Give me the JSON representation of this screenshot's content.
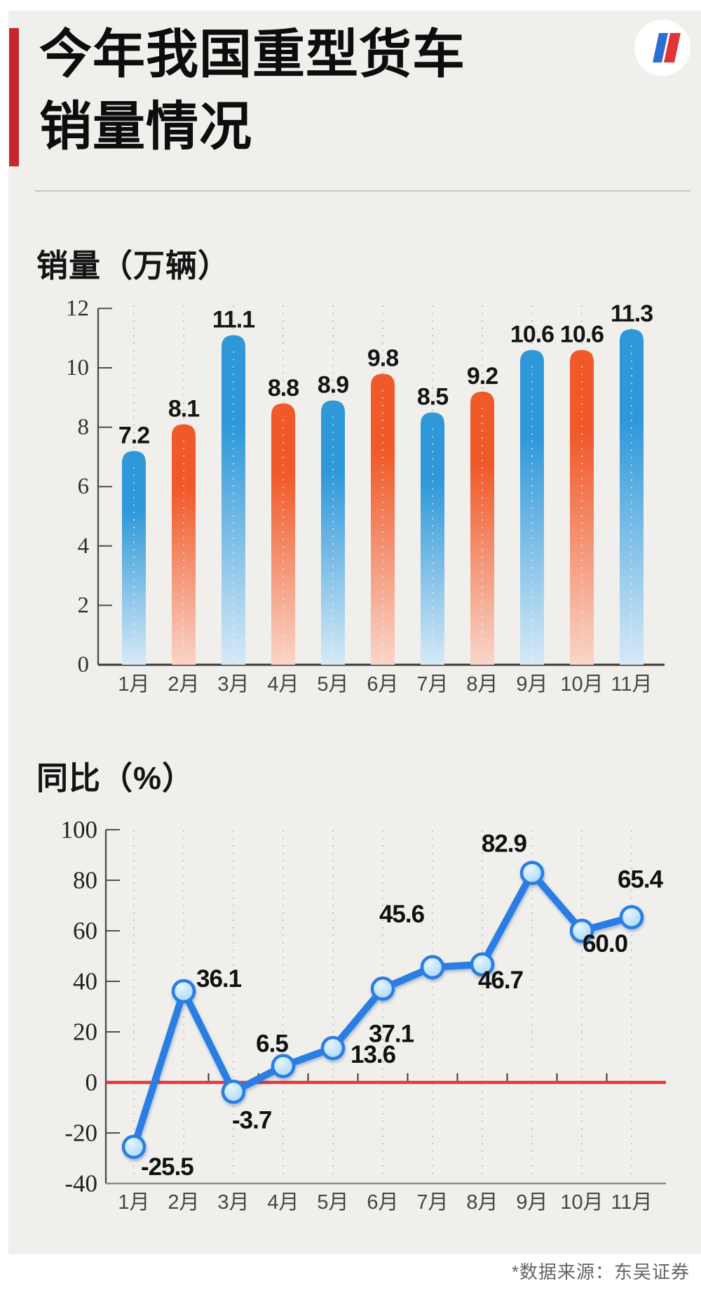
{
  "page": {
    "outer_bg": "#ffffff",
    "card_bg": "#f0efec"
  },
  "header": {
    "accent_color": "#c5272c",
    "title_line1": "今年我国重型货车",
    "title_line2": "销量情况",
    "logo_icon": "red-blue-n-logo",
    "logo_colors": {
      "circle": "#ffffff",
      "left_stroke": "#2b6fd4",
      "right_stroke": "#e03438"
    }
  },
  "sales_section": {
    "title": "销量",
    "unit": "（万辆）"
  },
  "yoy_section": {
    "title": "同比",
    "unit": "（%）"
  },
  "chart_data": [
    {
      "type": "bar",
      "title": "销量（万辆）",
      "categories": [
        "1月",
        "2月",
        "3月",
        "4月",
        "5月",
        "6月",
        "7月",
        "8月",
        "9月",
        "10月",
        "11月"
      ],
      "values": [
        7.2,
        8.1,
        11.1,
        8.8,
        8.9,
        9.8,
        8.5,
        9.2,
        10.6,
        10.6,
        11.3
      ],
      "labels": [
        "7.2",
        "8.1",
        "11.1",
        "8.8",
        "8.9",
        "9.8",
        "8.5",
        "9.2",
        "10.6",
        "10.6",
        "11.3"
      ],
      "yticks": [
        12,
        10,
        8,
        6,
        4,
        2,
        0
      ],
      "ylim": [
        0,
        12
      ],
      "grid": "dotted-vertical",
      "legend": "none",
      "colors": {
        "odd_month_bar_top": "#2e98d9",
        "odd_month_bar_bottom": "#d6e9f6",
        "even_month_bar_top": "#f05a2a",
        "even_month_bar_bottom": "#f9d5c9"
      }
    },
    {
      "type": "line",
      "title": "同比（%）",
      "categories": [
        "1月",
        "2月",
        "3月",
        "4月",
        "5月",
        "6月",
        "7月",
        "8月",
        "9月",
        "10月",
        "11月"
      ],
      "values": [
        -25.5,
        36.1,
        -3.7,
        6.5,
        13.6,
        37.1,
        45.6,
        46.7,
        82.9,
        60.0,
        65.4
      ],
      "labels": [
        "-25.5",
        "36.1",
        "-3.7",
        "6.5",
        "13.6",
        "37.1",
        "45.6",
        "46.7",
        "82.9",
        "60.0",
        "65.4"
      ],
      "yticks": [
        100,
        80,
        60,
        40,
        20,
        0,
        -20,
        -40
      ],
      "ylim": [
        -40,
        100
      ],
      "grid": "dotted-vertical",
      "legend": "none",
      "line_color": "#2b7de2",
      "marker_fill": "#bfe2fa",
      "marker_stroke": "#2b7de2",
      "zero_line_color": "#e03b3b",
      "zero_label_color": "#d43c3c"
    }
  ],
  "footer": {
    "source_note": "*数据来源：东吴证券"
  }
}
